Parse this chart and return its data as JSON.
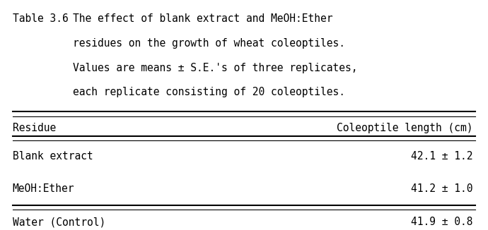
{
  "title_label": "Table 3.6",
  "caption_lines": [
    "The effect of blank extract and MeOH:Ether",
    "residues on the growth of wheat coleoptiles.",
    "Values are means ± S.E.'s of three replicates,",
    "each replicate consisting of 20 coleoptiles."
  ],
  "col_headers": [
    "Residue",
    "Coleoptile length (cm)"
  ],
  "rows": [
    [
      "Blank extract",
      "42.1 ± 1.2"
    ],
    [
      "MeOH:Ether",
      "41.2 ± 1.0"
    ],
    [
      "Water (Control)",
      "41.9 ± 0.8"
    ]
  ],
  "font_family": "monospace",
  "font_size": 10.5,
  "bg_color": "#ffffff",
  "text_color": "#000000",
  "figwidth": 6.9,
  "figheight": 3.26,
  "dpi": 100
}
